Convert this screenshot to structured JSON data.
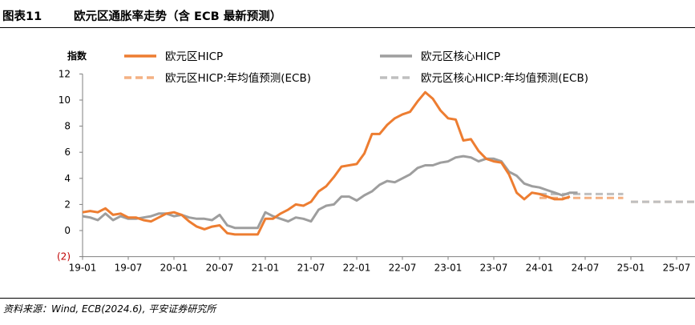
{
  "header": {
    "figure_number": "图表11",
    "title": "欧元区通胀率走势（含 ECB 最新预测）"
  },
  "footer": {
    "source": "资料来源：Wind, ECB(2024.6), 平安证券研究所"
  },
  "chart_data": {
    "type": "line",
    "title": "欧元区通胀率走势（含 ECB 最新预测）",
    "ylabel": "指数",
    "xlabel": "",
    "ylim": [
      -2,
      12
    ],
    "yticks": [
      -2,
      0,
      2,
      4,
      6,
      8,
      10,
      12
    ],
    "ytick_labels": [
      "(2)",
      "0",
      "2",
      "4",
      "6",
      "8",
      "10",
      "12"
    ],
    "xticks": [
      "19-01",
      "19-07",
      "20-01",
      "20-07",
      "21-01",
      "21-07",
      "22-01",
      "22-07",
      "23-01",
      "23-07",
      "24-01",
      "24-07",
      "25-01",
      "25-07"
    ],
    "xlim": [
      "2019-01",
      "2025-12"
    ],
    "grid": false,
    "legend_position": "top",
    "colors": {
      "hicp": "#ED7D31",
      "core": "#9E9E9E",
      "hicp_forecast": "#F4B183",
      "core_forecast": "#BFBFBF",
      "negative_tick": "#C00000"
    },
    "series": [
      {
        "name": "欧元区HICP",
        "style": "solid",
        "start": "2019-01",
        "values": [
          1.4,
          1.5,
          1.4,
          1.7,
          1.2,
          1.3,
          1.0,
          1.0,
          0.8,
          0.7,
          1.0,
          1.3,
          1.4,
          1.2,
          0.7,
          0.3,
          0.1,
          0.3,
          0.4,
          -0.2,
          -0.3,
          -0.3,
          -0.3,
          -0.3,
          0.9,
          0.9,
          1.3,
          1.6,
          2.0,
          1.9,
          2.2,
          3.0,
          3.4,
          4.1,
          4.9,
          5.0,
          5.1,
          5.9,
          7.4,
          7.4,
          8.1,
          8.6,
          8.9,
          9.1,
          9.9,
          10.6,
          10.1,
          9.2,
          8.6,
          8.5,
          6.9,
          7.0,
          6.1,
          5.5,
          5.3,
          5.2,
          4.3,
          2.9,
          2.4,
          2.9,
          2.8,
          2.6,
          2.4,
          2.4,
          2.6
        ]
      },
      {
        "name": "欧元区核心HICP",
        "style": "solid",
        "start": "2019-01",
        "values": [
          1.1,
          1.0,
          0.8,
          1.3,
          0.8,
          1.1,
          0.9,
          0.9,
          1.0,
          1.1,
          1.3,
          1.3,
          1.1,
          1.2,
          1.0,
          0.9,
          0.9,
          0.8,
          1.2,
          0.4,
          0.2,
          0.2,
          0.2,
          0.2,
          1.4,
          1.1,
          0.9,
          0.7,
          1.0,
          0.9,
          0.7,
          1.6,
          1.9,
          2.0,
          2.6,
          2.6,
          2.3,
          2.7,
          3.0,
          3.5,
          3.8,
          3.7,
          4.0,
          4.3,
          4.8,
          5.0,
          5.0,
          5.2,
          5.3,
          5.6,
          5.7,
          5.6,
          5.3,
          5.5,
          5.5,
          5.3,
          4.5,
          4.2,
          3.6,
          3.4,
          3.3,
          3.1,
          2.9,
          2.7,
          2.9,
          2.9
        ]
      },
      {
        "name": "欧元区HICP:年均值预测(ECB)",
        "style": "dashed",
        "segments": [
          {
            "from": "2024-01",
            "to": "2024-12",
            "value": 2.5
          },
          {
            "from": "2025-01",
            "to": "2025-12",
            "value": 2.2
          }
        ]
      },
      {
        "name": "欧元区核心HICP:年均值预测(ECB)",
        "style": "dashed",
        "segments": [
          {
            "from": "2024-01",
            "to": "2024-12",
            "value": 2.8
          },
          {
            "from": "2025-01",
            "to": "2025-12",
            "value": 2.2
          }
        ]
      }
    ]
  }
}
